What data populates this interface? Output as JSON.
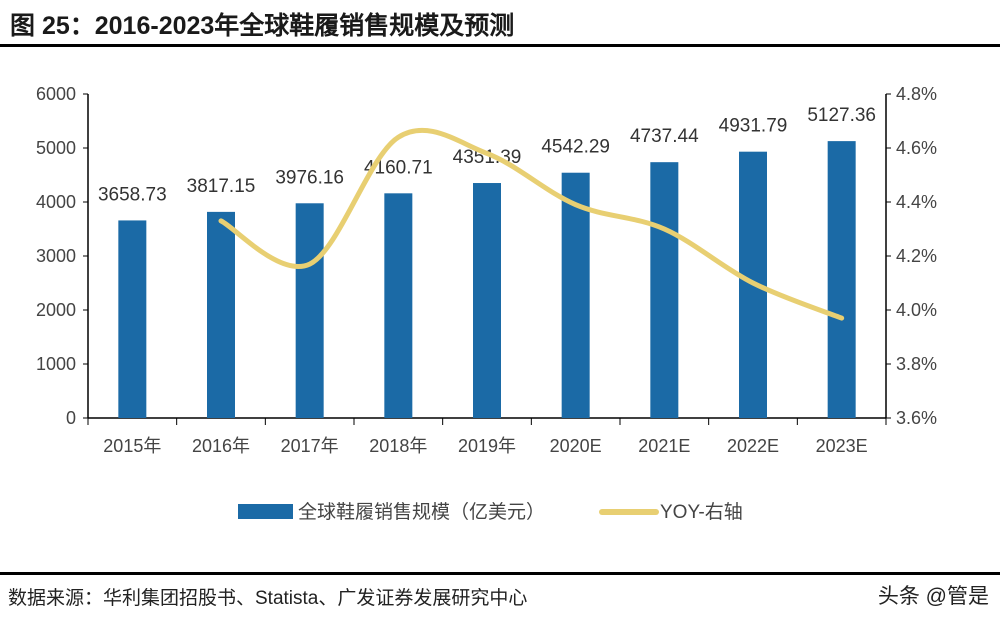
{
  "title": "图 25：2016-2023年全球鞋履销售规模及预测",
  "source": "数据来源：华利集团招股书、Statista、广发证券发展研究中心",
  "watermark": "头条 @管是",
  "colors": {
    "bar": "#1B6AA6",
    "line": "#E8CF72"
  },
  "chart_data": {
    "type": "bar+line",
    "categories": [
      "2015年",
      "2016年",
      "2017年",
      "2018年",
      "2019年",
      "2020E",
      "2021E",
      "2022E",
      "2023E"
    ],
    "series": [
      {
        "name": "全球鞋履销售规模（亿美元）",
        "type": "bar",
        "axis": "left",
        "values": [
          3658.73,
          3817.15,
          3976.16,
          4160.71,
          4351.39,
          4542.29,
          4737.44,
          4931.79,
          5127.36
        ],
        "labels": [
          "3658.73",
          "3817.15",
          "3976.16",
          "4160.71",
          "4351.39",
          "4542.29",
          "4737.44",
          "4931.79",
          "5127.36"
        ]
      },
      {
        "name": "YOY-右轴",
        "type": "line",
        "axis": "right",
        "values": [
          null,
          4.33,
          4.17,
          4.64,
          4.58,
          4.39,
          4.3,
          4.1,
          3.97
        ]
      }
    ],
    "left_axis": {
      "range": [
        0,
        6000
      ],
      "ticks": [
        "0",
        "1000",
        "2000",
        "3000",
        "4000",
        "5000",
        "6000"
      ]
    },
    "right_axis": {
      "range": [
        3.6,
        4.8
      ],
      "ticks": [
        "3.6%",
        "3.8%",
        "4.0%",
        "4.2%",
        "4.4%",
        "4.6%",
        "4.8%"
      ]
    },
    "legend_placement": "bottom",
    "grid": false
  }
}
